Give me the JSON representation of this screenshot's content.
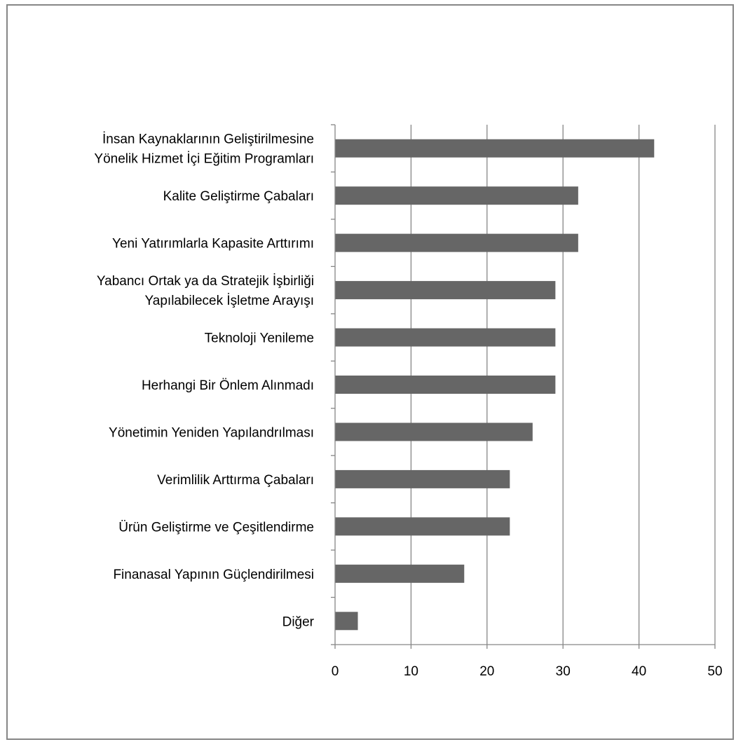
{
  "chart_data": {
    "type": "bar",
    "orientation": "horizontal",
    "title": "",
    "xlabel": "",
    "ylabel": "",
    "xlim": [
      0,
      50
    ],
    "xticks": [
      0,
      10,
      20,
      30,
      40,
      50
    ],
    "tick_labels": [
      "0",
      "10",
      "20",
      "30",
      "40",
      "50"
    ],
    "grid": true,
    "legend": "none",
    "bar_color": "#666666",
    "categories": [
      [
        "İnsan Kaynaklarının Geliştirilmesine",
        "Yönelik Hizmet İçi Eğitim Programları"
      ],
      [
        "Kalite Geliştirme Çabaları"
      ],
      [
        "Yeni Yatırımlarla Kapasite Arttırımı"
      ],
      [
        "Yabancı Ortak ya da Stratejik İşbirliği",
        "Yapılabilecek İşletme Arayışı"
      ],
      [
        "Teknoloji Yenileme"
      ],
      [
        "Herhangi Bir Önlem Alınmadı"
      ],
      [
        "Yönetimin Yeniden Yapılandrılması"
      ],
      [
        "Verimlilik Arttırma Çabaları"
      ],
      [
        "Ürün Geliştirme ve Çeşitlendirme"
      ],
      [
        "Finanasal Yapının Güçlendirilmesi"
      ],
      [
        "Diğer"
      ]
    ],
    "values": [
      42,
      32,
      32,
      29,
      29,
      29,
      26,
      23,
      23,
      17,
      3
    ]
  }
}
